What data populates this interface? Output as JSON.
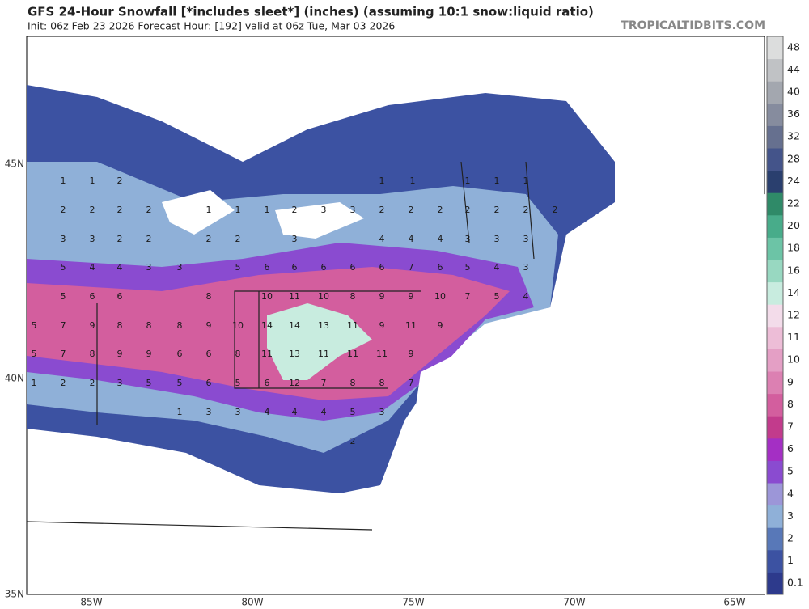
{
  "header": {
    "title": "GFS 24-Hour Snowfall [*includes sleet*] (inches) (assuming 10:1 snow:liquid ratio)",
    "subtitle": "Init: 06z Feb 23 2026   Forecast Hour: [192]   valid at 06z Tue, Mar 03 2026",
    "credit": "TROPICALTIDBITS.COM"
  },
  "axes": {
    "longitude_labels": [
      "85W",
      "80W",
      "75W",
      "70W",
      "65W"
    ],
    "latitude_labels": [
      "45N",
      "40N",
      "35N"
    ]
  },
  "colorbar": {
    "labels": [
      "0.1",
      "1",
      "2",
      "3",
      "4",
      "5",
      "6",
      "7",
      "8",
      "9",
      "10",
      "11",
      "12",
      "14",
      "16",
      "18",
      "20",
      "22",
      "24",
      "28",
      "32",
      "36",
      "40",
      "44",
      "48"
    ],
    "colors": [
      "#2d3a8c",
      "#3c52a2",
      "#5878b8",
      "#8fb0d8",
      "#9c96d8",
      "#8a4bd0",
      "#a42fc4",
      "#c23b8c",
      "#d35e9e",
      "#dc80b2",
      "#e49fc5",
      "#edbdd7",
      "#f3dcea",
      "#c8ecdf",
      "#98d8c1",
      "#6cc4a6",
      "#48ac8a",
      "#2f8a68",
      "#2a3f6e",
      "#44548a",
      "#66708f",
      "#868c9e",
      "#a3a7af",
      "#c0c2c5",
      "#dcdddd"
    ]
  },
  "map_labels": [
    [
      "1",
      "1",
      "2",
      "1",
      "1",
      "1",
      "1",
      "1"
    ],
    [
      "2",
      "2",
      "2",
      "2",
      "1",
      "1",
      "1",
      "2",
      "3",
      "3",
      "2",
      "2",
      "2",
      "2",
      "2",
      "2",
      "2"
    ],
    [
      "3",
      "3",
      "2",
      "2",
      "2",
      "2",
      "3",
      "4",
      "4",
      "4",
      "3",
      "3",
      "3"
    ],
    [
      "5",
      "4",
      "4",
      "3",
      "3",
      "5",
      "6",
      "6",
      "6",
      "6",
      "6",
      "7",
      "6",
      "5",
      "4",
      "3"
    ],
    [
      "5",
      "6",
      "6",
      "8",
      "10",
      "11",
      "10",
      "8",
      "9",
      "9",
      "10",
      "7",
      "5",
      "4"
    ],
    [
      "5",
      "7",
      "9",
      "8",
      "8",
      "8",
      "9",
      "10",
      "14",
      "14",
      "13",
      "11",
      "9",
      "11",
      "9"
    ],
    [
      "5",
      "7",
      "8",
      "9",
      "9",
      "6",
      "6",
      "8",
      "11",
      "13",
      "11",
      "11",
      "11",
      "9"
    ],
    [
      "1",
      "2",
      "2",
      "3",
      "5",
      "5",
      "6",
      "5",
      "6",
      "12",
      "7",
      "8",
      "8",
      "7"
    ],
    [
      "1",
      "3",
      "3",
      "4",
      "4",
      "4",
      "5",
      "3"
    ],
    [
      "2"
    ]
  ]
}
